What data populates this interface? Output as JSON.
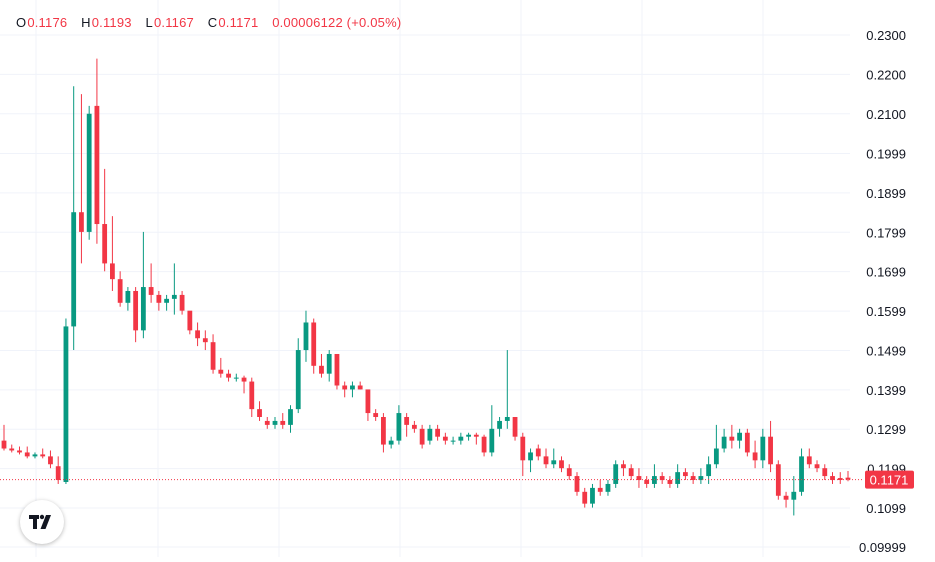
{
  "header": {
    "o_label": "O",
    "o_value": "0.1176",
    "h_label": "H",
    "h_value": "0.1193",
    "l_label": "L",
    "l_value": "0.1167",
    "c_label": "C",
    "c_value": "0.1171",
    "change": "0.00006122 (+0.05%)"
  },
  "colors": {
    "up": "#089981",
    "down": "#f23645",
    "price_tag": "#f23645",
    "grid": "#f0f3fa",
    "axis_text": "#131722"
  },
  "chart_data": {
    "type": "candlestick",
    "y_axis_labels": [
      "0.2300",
      "0.2200",
      "0.2100",
      "0.1999",
      "0.1899",
      "0.1799",
      "0.1699",
      "0.1599",
      "0.1499",
      "0.1399",
      "0.1299",
      "0.1199",
      "0.1099",
      "0.09999"
    ],
    "y_axis_values": [
      0.23,
      0.22,
      0.21,
      0.1999,
      0.1899,
      0.1799,
      0.1699,
      0.1599,
      0.1499,
      0.1399,
      0.1299,
      0.1199,
      0.1099,
      0.09999
    ],
    "ylim": [
      0.0999,
      0.233
    ],
    "last_price": 0.1171,
    "last_price_label": "0.1171",
    "grid": true,
    "candles": [
      [
        0.127,
        0.131,
        0.1245,
        0.125
      ],
      [
        0.125,
        0.126,
        0.124,
        0.1245
      ],
      [
        0.1245,
        0.1255,
        0.1235,
        0.124
      ],
      [
        0.124,
        0.1255,
        0.1225,
        0.123
      ],
      [
        0.123,
        0.124,
        0.1225,
        0.1235
      ],
      [
        0.1235,
        0.125,
        0.1225,
        0.123
      ],
      [
        0.123,
        0.1245,
        0.12,
        0.121
      ],
      [
        0.1205,
        0.123,
        0.116,
        0.117
      ],
      [
        0.1165,
        0.158,
        0.116,
        0.156
      ],
      [
        0.156,
        0.217,
        0.15,
        0.185
      ],
      [
        0.185,
        0.215,
        0.172,
        0.18
      ],
      [
        0.18,
        0.212,
        0.178,
        0.21
      ],
      [
        0.212,
        0.224,
        0.177,
        0.182
      ],
      [
        0.182,
        0.196,
        0.17,
        0.172
      ],
      [
        0.172,
        0.184,
        0.165,
        0.168
      ],
      [
        0.168,
        0.17,
        0.161,
        0.162
      ],
      [
        0.162,
        0.166,
        0.16,
        0.165
      ],
      [
        0.165,
        0.166,
        0.152,
        0.155
      ],
      [
        0.155,
        0.18,
        0.153,
        0.166
      ],
      [
        0.166,
        0.172,
        0.162,
        0.164
      ],
      [
        0.164,
        0.165,
        0.16,
        0.162
      ],
      [
        0.162,
        0.164,
        0.16,
        0.163
      ],
      [
        0.163,
        0.172,
        0.159,
        0.164
      ],
      [
        0.164,
        0.165,
        0.159,
        0.16
      ],
      [
        0.16,
        0.159,
        0.154,
        0.155
      ],
      [
        0.155,
        0.157,
        0.151,
        0.153
      ],
      [
        0.153,
        0.155,
        0.15,
        0.152
      ],
      [
        0.152,
        0.154,
        0.144,
        0.145
      ],
      [
        0.145,
        0.148,
        0.143,
        0.144
      ],
      [
        0.144,
        0.145,
        0.142,
        0.143
      ],
      [
        0.143,
        0.144,
        0.142,
        0.143
      ],
      [
        0.143,
        0.1435,
        0.139,
        0.142
      ],
      [
        0.142,
        0.143,
        0.133,
        0.135
      ],
      [
        0.135,
        0.137,
        0.132,
        0.133
      ],
      [
        0.132,
        0.133,
        0.13,
        0.131
      ],
      [
        0.131,
        0.133,
        0.13,
        0.132
      ],
      [
        0.132,
        0.134,
        0.13,
        0.131
      ],
      [
        0.131,
        0.136,
        0.129,
        0.135
      ],
      [
        0.135,
        0.153,
        0.134,
        0.15
      ],
      [
        0.15,
        0.16,
        0.147,
        0.157
      ],
      [
        0.157,
        0.158,
        0.144,
        0.146
      ],
      [
        0.146,
        0.149,
        0.143,
        0.144
      ],
      [
        0.144,
        0.15,
        0.142,
        0.149
      ],
      [
        0.149,
        0.149,
        0.14,
        0.141
      ],
      [
        0.141,
        0.142,
        0.138,
        0.14
      ],
      [
        0.14,
        0.142,
        0.138,
        0.141
      ],
      [
        0.141,
        0.142,
        0.14,
        0.14
      ],
      [
        0.14,
        0.139,
        0.132,
        0.134
      ],
      [
        0.134,
        0.135,
        0.132,
        0.133
      ],
      [
        0.133,
        0.134,
        0.124,
        0.126
      ],
      [
        0.126,
        0.128,
        0.125,
        0.127
      ],
      [
        0.127,
        0.136,
        0.126,
        0.134
      ],
      [
        0.133,
        0.134,
        0.128,
        0.131
      ],
      [
        0.131,
        0.132,
        0.129,
        0.13
      ],
      [
        0.13,
        0.131,
        0.125,
        0.126
      ],
      [
        0.127,
        0.131,
        0.126,
        0.13
      ],
      [
        0.13,
        0.131,
        0.127,
        0.128
      ],
      [
        0.128,
        0.129,
        0.126,
        0.127
      ],
      [
        0.127,
        0.128,
        0.126,
        0.127
      ],
      [
        0.127,
        0.129,
        0.126,
        0.128
      ],
      [
        0.128,
        0.129,
        0.127,
        0.1285
      ],
      [
        0.1285,
        0.129,
        0.126,
        0.128
      ],
      [
        0.128,
        0.1285,
        0.123,
        0.124
      ],
      [
        0.124,
        0.136,
        0.123,
        0.13
      ],
      [
        0.13,
        0.133,
        0.128,
        0.132
      ],
      [
        0.132,
        0.15,
        0.13,
        0.133
      ],
      [
        0.133,
        0.133,
        0.127,
        0.128
      ],
      [
        0.128,
        0.129,
        0.118,
        0.122
      ],
      [
        0.122,
        0.125,
        0.119,
        0.124
      ],
      [
        0.125,
        0.126,
        0.122,
        0.123
      ],
      [
        0.123,
        0.125,
        0.12,
        0.121
      ],
      [
        0.121,
        0.125,
        0.12,
        0.122
      ],
      [
        0.122,
        0.123,
        0.119,
        0.12
      ],
      [
        0.12,
        0.121,
        0.117,
        0.118
      ],
      [
        0.118,
        0.119,
        0.113,
        0.114
      ],
      [
        0.114,
        0.115,
        0.11,
        0.111
      ],
      [
        0.111,
        0.116,
        0.11,
        0.115
      ],
      [
        0.115,
        0.117,
        0.113,
        0.114
      ],
      [
        0.114,
        0.117,
        0.113,
        0.116
      ],
      [
        0.116,
        0.122,
        0.115,
        0.121
      ],
      [
        0.121,
        0.122,
        0.118,
        0.12
      ],
      [
        0.12,
        0.121,
        0.117,
        0.118
      ],
      [
        0.118,
        0.12,
        0.115,
        0.117
      ],
      [
        0.117,
        0.118,
        0.115,
        0.116
      ],
      [
        0.116,
        0.121,
        0.115,
        0.118
      ],
      [
        0.118,
        0.119,
        0.116,
        0.117
      ],
      [
        0.117,
        0.118,
        0.115,
        0.116
      ],
      [
        0.116,
        0.121,
        0.115,
        0.119
      ],
      [
        0.119,
        0.12,
        0.117,
        0.118
      ],
      [
        0.118,
        0.119,
        0.116,
        0.117
      ],
      [
        0.117,
        0.12,
        0.116,
        0.118
      ],
      [
        0.118,
        0.123,
        0.116,
        0.121
      ],
      [
        0.121,
        0.131,
        0.12,
        0.125
      ],
      [
        0.125,
        0.13,
        0.124,
        0.128
      ],
      [
        0.128,
        0.131,
        0.125,
        0.127
      ],
      [
        0.127,
        0.13,
        0.125,
        0.129
      ],
      [
        0.129,
        0.13,
        0.123,
        0.124
      ],
      [
        0.124,
        0.127,
        0.12,
        0.122
      ],
      [
        0.122,
        0.13,
        0.12,
        0.128
      ],
      [
        0.128,
        0.132,
        0.119,
        0.121
      ],
      [
        0.121,
        0.122,
        0.112,
        0.113
      ],
      [
        0.113,
        0.114,
        0.11,
        0.112
      ],
      [
        0.112,
        0.118,
        0.108,
        0.114
      ],
      [
        0.114,
        0.125,
        0.113,
        0.123
      ],
      [
        0.123,
        0.125,
        0.12,
        0.121
      ],
      [
        0.121,
        0.122,
        0.119,
        0.12
      ],
      [
        0.12,
        0.121,
        0.117,
        0.118
      ],
      [
        0.118,
        0.119,
        0.116,
        0.117
      ],
      [
        0.1175,
        0.119,
        0.116,
        0.117
      ],
      [
        0.1176,
        0.1193,
        0.1167,
        0.1171
      ]
    ]
  }
}
